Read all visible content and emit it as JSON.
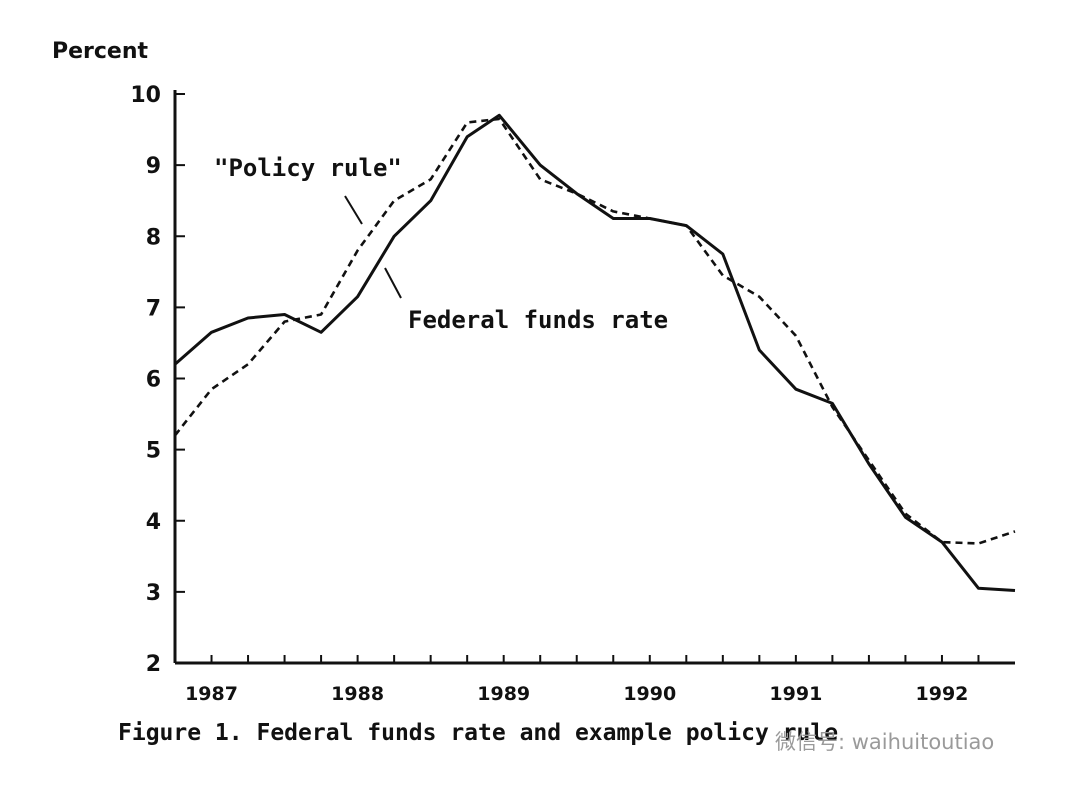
{
  "chart_data": {
    "type": "line",
    "ylabel": "Percent",
    "caption": "Figure 1. Federal funds rate and example policy rule",
    "ylim": [
      2,
      10
    ],
    "yticks": [
      2,
      3,
      4,
      5,
      6,
      7,
      8,
      9,
      10
    ],
    "xlim": [
      1986.75,
      1992.5
    ],
    "xtick_labels": [
      "1987",
      "1988",
      "1989",
      "1990",
      "1991",
      "1992"
    ],
    "grid": false,
    "annotations": [
      "\"Policy rule\"",
      "Federal funds rate"
    ],
    "series": [
      {
        "name": "Federal funds rate",
        "style": "solid",
        "x": [
          1986.75,
          1987.0,
          1987.25,
          1987.5,
          1987.75,
          1988.0,
          1988.25,
          1988.5,
          1988.75,
          1988.97,
          1989.25,
          1989.5,
          1989.75,
          1990.0,
          1990.25,
          1990.5,
          1990.75,
          1991.0,
          1991.25,
          1991.5,
          1991.75,
          1992.0,
          1992.25,
          1992.5
        ],
        "values": [
          6.2,
          6.65,
          6.85,
          6.9,
          6.65,
          7.15,
          8.0,
          8.5,
          9.4,
          9.7,
          9.0,
          8.6,
          8.25,
          8.25,
          8.15,
          7.75,
          6.4,
          5.85,
          5.65,
          4.8,
          4.05,
          3.7,
          3.05,
          3.02
        ]
      },
      {
        "name": "\"Policy rule\"",
        "style": "dashed",
        "x": [
          1986.75,
          1987.0,
          1987.25,
          1987.5,
          1987.75,
          1988.0,
          1988.25,
          1988.5,
          1988.75,
          1988.97,
          1989.25,
          1989.5,
          1989.75,
          1990.0,
          1990.25,
          1990.5,
          1990.75,
          1991.0,
          1991.25,
          1991.5,
          1991.75,
          1992.0,
          1992.25,
          1992.5
        ],
        "values": [
          5.2,
          5.85,
          6.2,
          6.8,
          6.9,
          7.8,
          8.5,
          8.8,
          9.6,
          9.65,
          8.8,
          8.6,
          8.35,
          8.25,
          8.15,
          7.45,
          7.15,
          6.6,
          5.6,
          4.85,
          4.1,
          3.7,
          3.68,
          3.85
        ]
      }
    ]
  },
  "watermark": "微信号: waihuitoutiao"
}
